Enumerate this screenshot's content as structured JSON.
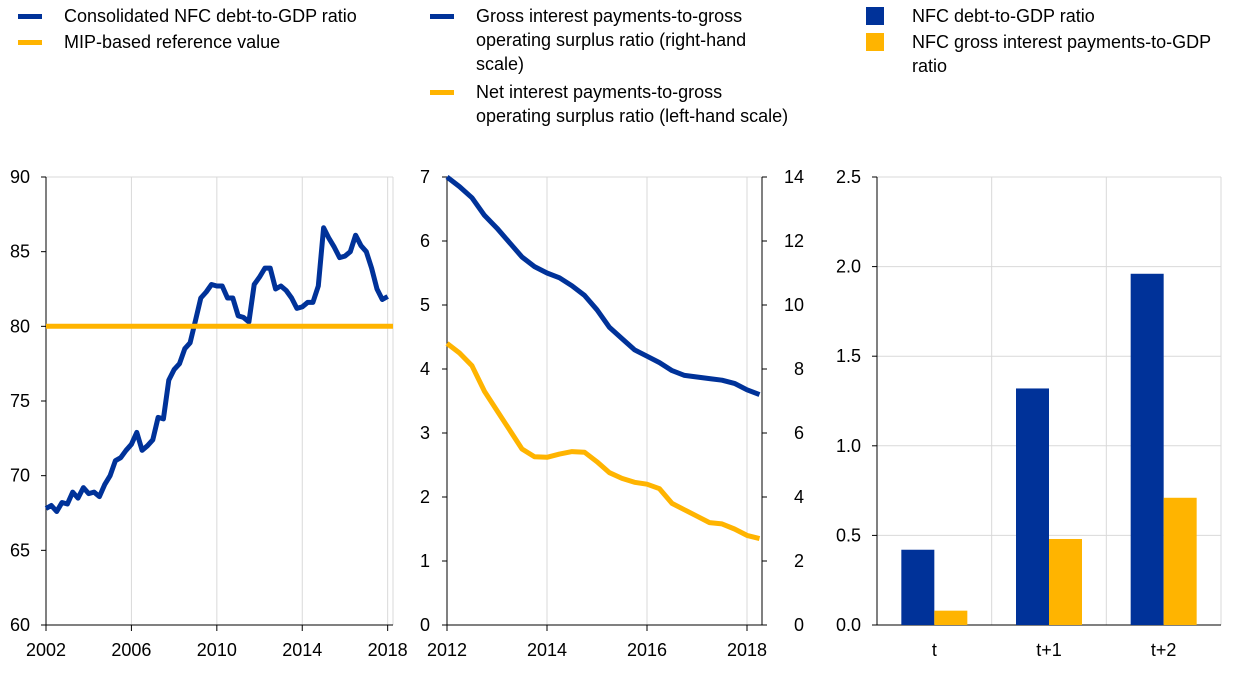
{
  "colors": {
    "blue": "#003299",
    "yellow": "#ffb400",
    "grid": "#d9d9d9",
    "axis": "#000000"
  },
  "legends": {
    "left": [
      {
        "label": "Consolidated NFC debt-to-GDP ratio",
        "color": "#003299",
        "marker": "line"
      },
      {
        "label": "MIP-based reference value",
        "color": "#ffb400",
        "marker": "line"
      }
    ],
    "middle": [
      {
        "label": "Gross interest payments-to-gross operating surplus ratio (right-hand scale)",
        "color": "#003299",
        "marker": "line"
      },
      {
        "label": "Net interest payments-to-gross operating surplus ratio (left-hand scale)",
        "color": "#ffb400",
        "marker": "line"
      }
    ],
    "right": [
      {
        "label": "NFC debt-to-GDP ratio",
        "color": "#003299",
        "marker": "square"
      },
      {
        "label": "NFC gross interest payments-to-GDP ratio",
        "color": "#ffb400",
        "marker": "square"
      }
    ]
  },
  "chart_data": [
    {
      "type": "line",
      "ylim": [
        60,
        90
      ],
      "yticks": [
        "60",
        "65",
        "70",
        "75",
        "80",
        "85",
        "90"
      ],
      "xlim": [
        2002,
        2018.25
      ],
      "xticks": [
        "2002",
        "2006",
        "2010",
        "2014",
        "2018"
      ],
      "grid": "vertical",
      "series": [
        {
          "name": "Consolidated NFC debt-to-GDP ratio",
          "color": "#003299",
          "x": [
            2002.0,
            2002.25,
            2002.5,
            2002.75,
            2003.0,
            2003.25,
            2003.5,
            2003.75,
            2004.0,
            2004.25,
            2004.5,
            2004.75,
            2005.0,
            2005.25,
            2005.5,
            2005.75,
            2006.0,
            2006.25,
            2006.5,
            2006.75,
            2007.0,
            2007.25,
            2007.5,
            2007.75,
            2008.0,
            2008.25,
            2008.5,
            2008.75,
            2009.0,
            2009.25,
            2009.5,
            2009.75,
            2010.0,
            2010.25,
            2010.5,
            2010.75,
            2011.0,
            2011.25,
            2011.5,
            2011.75,
            2012.0,
            2012.25,
            2012.5,
            2012.75,
            2013.0,
            2013.25,
            2013.5,
            2013.75,
            2014.0,
            2014.25,
            2014.5,
            2014.75,
            2015.0,
            2015.25,
            2015.5,
            2015.75,
            2016.0,
            2016.25,
            2016.5,
            2016.75,
            2017.0,
            2017.25,
            2017.5,
            2017.75,
            2018.0
          ],
          "values": [
            67.8,
            68.0,
            67.6,
            68.2,
            68.1,
            68.9,
            68.5,
            69.2,
            68.8,
            68.9,
            68.6,
            69.4,
            70.0,
            71.0,
            71.2,
            71.7,
            72.1,
            72.9,
            71.7,
            72.0,
            72.4,
            73.9,
            73.8,
            76.4,
            77.1,
            77.5,
            78.5,
            78.9,
            80.4,
            81.9,
            82.3,
            82.8,
            82.7,
            82.7,
            81.9,
            81.9,
            80.7,
            80.6,
            80.3,
            82.8,
            83.3,
            83.9,
            83.9,
            82.5,
            82.7,
            82.4,
            81.9,
            81.2,
            81.3,
            81.6,
            81.6,
            82.7,
            86.6,
            85.9,
            85.3,
            84.6,
            84.7,
            85.0,
            86.1,
            85.4,
            85.0,
            83.9,
            82.5,
            81.8,
            82.0
          ]
        },
        {
          "name": "MIP-based reference value",
          "color": "#ffb400",
          "x": [
            2002.0,
            2018.25
          ],
          "values": [
            80,
            80
          ]
        }
      ]
    },
    {
      "type": "line",
      "ylim_left": [
        0,
        7
      ],
      "yticks_left": [
        "0",
        "1",
        "2",
        "3",
        "4",
        "5",
        "6",
        "7"
      ],
      "ylim_right": [
        0,
        14
      ],
      "yticks_right": [
        "0",
        "2",
        "4",
        "6",
        "8",
        "10",
        "12",
        "14"
      ],
      "xlim": [
        2012,
        2018.3
      ],
      "xticks": [
        "2012",
        "2014",
        "2016",
        "2018"
      ],
      "grid": "vertical",
      "series": [
        {
          "name": "Gross interest payments-to-gross operating surplus ratio (right-hand scale)",
          "axis": "right",
          "color": "#003299",
          "x": [
            2012.0,
            2012.25,
            2012.5,
            2012.75,
            2013.0,
            2013.25,
            2013.5,
            2013.75,
            2014.0,
            2014.25,
            2014.5,
            2014.75,
            2015.0,
            2015.25,
            2015.5,
            2015.75,
            2016.0,
            2016.25,
            2016.5,
            2016.75,
            2017.0,
            2017.25,
            2017.5,
            2017.75,
            2018.0,
            2018.25
          ],
          "values": [
            14.0,
            13.7,
            13.35,
            12.8,
            12.4,
            11.95,
            11.5,
            11.2,
            11.0,
            10.85,
            10.6,
            10.3,
            9.85,
            9.3,
            8.95,
            8.6,
            8.4,
            8.2,
            7.95,
            7.8,
            7.75,
            7.7,
            7.65,
            7.55,
            7.35,
            7.2
          ]
        },
        {
          "name": "Net interest payments-to-gross operating surplus ratio (left-hand scale)",
          "axis": "left",
          "color": "#ffb400",
          "x": [
            2012.0,
            2012.25,
            2012.5,
            2012.75,
            2013.0,
            2013.25,
            2013.5,
            2013.75,
            2014.0,
            2014.25,
            2014.5,
            2014.75,
            2015.0,
            2015.25,
            2015.5,
            2015.75,
            2016.0,
            2016.25,
            2016.5,
            2016.75,
            2017.0,
            2017.25,
            2017.5,
            2017.75,
            2018.0,
            2018.25
          ],
          "values": [
            4.4,
            4.25,
            4.05,
            3.65,
            3.35,
            3.05,
            2.75,
            2.63,
            2.62,
            2.67,
            2.71,
            2.7,
            2.55,
            2.38,
            2.29,
            2.23,
            2.2,
            2.13,
            1.9,
            1.8,
            1.7,
            1.6,
            1.58,
            1.5,
            1.4,
            1.35
          ]
        }
      ]
    },
    {
      "type": "bar",
      "categories": [
        "t",
        "t+1",
        "t+2"
      ],
      "ylim": [
        0,
        2.5
      ],
      "yticks": [
        "0.0",
        "0.5",
        "1.0",
        "1.5",
        "2.0",
        "2.5"
      ],
      "grid": "both",
      "series": [
        {
          "name": "NFC debt-to-GDP ratio",
          "color": "#003299",
          "values": [
            0.42,
            1.32,
            1.96
          ]
        },
        {
          "name": "NFC gross interest payments-to-GDP ratio",
          "color": "#ffb400",
          "values": [
            0.08,
            0.48,
            0.71
          ]
        }
      ]
    }
  ]
}
